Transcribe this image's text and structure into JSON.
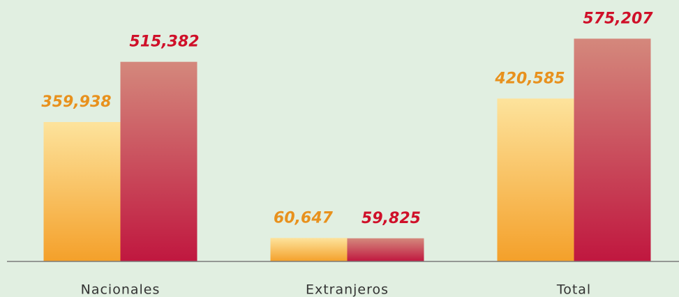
{
  "chart_data": {
    "type": "bar",
    "categories": [
      "Nacionales",
      "Extranjeros",
      "Total"
    ],
    "series": [
      {
        "color": "#e8911d",
        "gradient": [
          "#fde39c",
          "#f4a02a"
        ],
        "values": [
          359938,
          60647,
          420585
        ],
        "value_labels": [
          "359,938",
          "60,647",
          "420,585"
        ]
      },
      {
        "color": "#cf1029",
        "gradient": [
          "#d4887c",
          "#c0173f"
        ],
        "values": [
          515382,
          59825,
          575207
        ],
        "value_labels": [
          "515,382",
          "59,825",
          "575,207"
        ]
      }
    ],
    "ylim": [
      0,
      675000
    ]
  }
}
